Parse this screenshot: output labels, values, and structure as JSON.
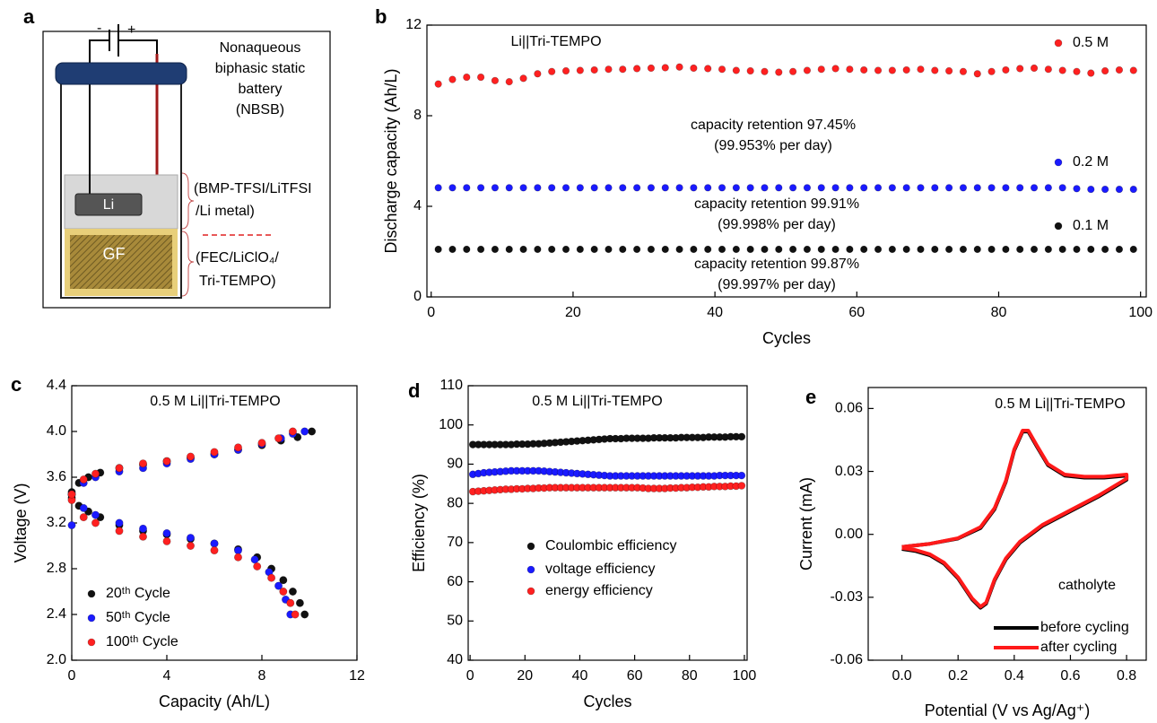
{
  "schematic": {
    "panel_label": "a",
    "minus": "-",
    "plus": "+",
    "battery_lines": [
      "Nonaqueous",
      "biphasic static",
      "battery",
      "(NBSB)"
    ],
    "top_phase": [
      "(BMP-TFSI/LiTFSI",
      "/Li metal)"
    ],
    "bottom_phase": [
      "(FEC/LiClO₄/",
      "Tri-TEMPO)"
    ],
    "anode": "Li",
    "felt": "GF"
  },
  "chart_data": [
    {
      "type": "scatter",
      "panel_label": "b",
      "xlabel": "Cycles",
      "ylabel": "Discharge capacity (Ah/L)",
      "xlim": [
        -0.6,
        100.8
      ],
      "ylim": [
        0,
        12
      ],
      "xticks": [
        0,
        20,
        40,
        60,
        80,
        100
      ],
      "yticks": [
        0,
        4,
        8,
        12
      ],
      "annotations": [
        "Li||Tri-TEMPO",
        "capacity retention 97.45%",
        "(99.953% per day)",
        "capacity retention 99.91%",
        "(99.998% per day)",
        "capacity retention 99.87%",
        "(99.997% per day)"
      ],
      "x": [
        1,
        3,
        5,
        7,
        9,
        11,
        13,
        15,
        17,
        19,
        21,
        23,
        25,
        27,
        29,
        31,
        33,
        35,
        37,
        39,
        41,
        43,
        45,
        47,
        49,
        51,
        53,
        55,
        57,
        59,
        61,
        63,
        65,
        67,
        69,
        71,
        73,
        75,
        77,
        79,
        81,
        83,
        85,
        87,
        89,
        91,
        93,
        95,
        97,
        99
      ],
      "series": [
        {
          "name": "0.5 M",
          "color": "#ff2020",
          "values": [
            9.4,
            9.6,
            9.7,
            9.7,
            9.55,
            9.5,
            9.65,
            9.85,
            9.95,
            9.98,
            10.0,
            10.02,
            10.05,
            10.05,
            10.08,
            10.1,
            10.12,
            10.15,
            10.1,
            10.08,
            10.05,
            10.0,
            9.98,
            9.95,
            9.92,
            9.95,
            10.0,
            10.05,
            10.08,
            10.05,
            10.02,
            10.0,
            10.0,
            10.02,
            10.05,
            10.0,
            9.98,
            9.95,
            9.85,
            9.95,
            10.02,
            10.08,
            10.1,
            10.05,
            10.0,
            9.95,
            9.88,
            9.98,
            10.02,
            10.0
          ]
        },
        {
          "name": "0.2 M",
          "color": "#1a1aff",
          "values": [
            4.82,
            4.82,
            4.82,
            4.82,
            4.82,
            4.82,
            4.82,
            4.82,
            4.82,
            4.82,
            4.82,
            4.82,
            4.82,
            4.82,
            4.82,
            4.82,
            4.82,
            4.82,
            4.82,
            4.82,
            4.82,
            4.82,
            4.82,
            4.82,
            4.82,
            4.82,
            4.82,
            4.82,
            4.82,
            4.82,
            4.82,
            4.82,
            4.82,
            4.82,
            4.82,
            4.82,
            4.82,
            4.82,
            4.82,
            4.82,
            4.82,
            4.82,
            4.82,
            4.82,
            4.82,
            4.78,
            4.75,
            4.75,
            4.75,
            4.75
          ]
        },
        {
          "name": "0.1 M",
          "color": "#111111",
          "values": [
            2.1,
            2.1,
            2.1,
            2.1,
            2.1,
            2.1,
            2.1,
            2.1,
            2.1,
            2.1,
            2.1,
            2.1,
            2.1,
            2.1,
            2.1,
            2.1,
            2.1,
            2.1,
            2.1,
            2.1,
            2.1,
            2.1,
            2.1,
            2.1,
            2.1,
            2.1,
            2.1,
            2.1,
            2.1,
            2.1,
            2.1,
            2.1,
            2.1,
            2.1,
            2.1,
            2.1,
            2.1,
            2.1,
            2.1,
            2.1,
            2.1,
            2.1,
            2.1,
            2.1,
            2.1,
            2.1,
            2.1,
            2.1,
            2.1,
            2.1
          ]
        }
      ]
    },
    {
      "type": "scatter",
      "panel_label": "c",
      "xlabel": "Capacity (Ah/L)",
      "ylabel": "Voltage (V)",
      "xlim": [
        0,
        12
      ],
      "ylim": [
        2.0,
        4.4
      ],
      "xticks": [
        0,
        4,
        8,
        12
      ],
      "yticks": [
        {
          "value": 2.0,
          "label": "2.0"
        },
        2.4,
        2.8,
        3.2,
        3.6,
        {
          "value": 4.0,
          "label": "4.0"
        },
        4.4
      ],
      "annotations": [
        "0.5 M Li||Tri-TEMPO"
      ],
      "series": [
        {
          "name": "20ᵗʰ Cycle",
          "color": "#111111",
          "x": [
            0,
            0.3,
            0.7,
            1.2,
            2,
            3,
            4,
            5,
            6,
            7,
            7.8,
            8.4,
            8.9,
            9.3,
            9.6,
            9.8,
            0,
            0.3,
            0.7,
            1.2,
            2,
            3,
            4,
            5,
            6,
            7,
            8,
            8.8,
            9.5,
            10.1
          ],
          "values": [
            3.42,
            3.35,
            3.3,
            3.25,
            3.18,
            3.13,
            3.1,
            3.06,
            3.02,
            2.97,
            2.9,
            2.8,
            2.7,
            2.6,
            2.5,
            2.4,
            3.47,
            3.55,
            3.6,
            3.64,
            3.68,
            3.71,
            3.74,
            3.77,
            3.8,
            3.84,
            3.88,
            3.92,
            3.95,
            4.0
          ]
        },
        {
          "name": "50ᵗʰ Cycle",
          "color": "#1a1aff",
          "x": [
            0,
            0.5,
            1,
            2,
            3,
            4,
            5,
            6,
            7,
            7.7,
            8.3,
            8.7,
            9.0,
            9.2,
            0,
            0.5,
            1,
            2,
            3,
            4,
            5,
            6,
            7,
            8,
            8.8,
            9.3,
            9.8,
            0
          ],
          "values": [
            3.45,
            3.33,
            3.27,
            3.2,
            3.15,
            3.11,
            3.07,
            3.02,
            2.96,
            2.88,
            2.77,
            2.65,
            2.53,
            2.4,
            3.45,
            3.55,
            3.6,
            3.65,
            3.68,
            3.72,
            3.76,
            3.8,
            3.84,
            3.89,
            3.94,
            3.98,
            4.0,
            3.18
          ]
        },
        {
          "name": "100ᵗʰ Cycle",
          "color": "#ff2020",
          "x": [
            0,
            0.5,
            1,
            2,
            3,
            4,
            5,
            6,
            7,
            7.8,
            8.4,
            8.9,
            9.2,
            9.4,
            0,
            0.5,
            1,
            2,
            3,
            4,
            5,
            6,
            7,
            8,
            8.7,
            9.3
          ],
          "values": [
            3.4,
            3.25,
            3.2,
            3.13,
            3.08,
            3.04,
            3.0,
            2.96,
            2.9,
            2.82,
            2.72,
            2.6,
            2.5,
            2.4,
            3.45,
            3.58,
            3.63,
            3.68,
            3.72,
            3.74,
            3.78,
            3.82,
            3.86,
            3.9,
            3.94,
            4.0
          ]
        }
      ]
    },
    {
      "type": "scatter",
      "panel_label": "d",
      "xlabel": "Cycles",
      "ylabel": "Efficiency (%)",
      "xlim": [
        -0.7,
        101
      ],
      "ylim": [
        40,
        110
      ],
      "xticks": [
        0,
        20,
        40,
        60,
        80,
        100
      ],
      "yticks": [
        40,
        50,
        60,
        70,
        80,
        90,
        100,
        110
      ],
      "annotations": [
        "0.5 M Li||Tri-TEMPO"
      ],
      "x": [
        1,
        3,
        5,
        7,
        9,
        11,
        13,
        15,
        17,
        19,
        21,
        23,
        25,
        27,
        29,
        31,
        33,
        35,
        37,
        39,
        41,
        43,
        45,
        47,
        49,
        51,
        53,
        55,
        57,
        59,
        61,
        63,
        65,
        67,
        69,
        71,
        73,
        75,
        77,
        79,
        81,
        83,
        85,
        87,
        89,
        91,
        93,
        95,
        97,
        99
      ],
      "series": [
        {
          "name": "Coulombic efficiency",
          "color": "#111111",
          "values": [
            95.0,
            95.0,
            95.0,
            95.0,
            95.0,
            95.0,
            95.0,
            95.0,
            95.1,
            95.1,
            95.1,
            95.2,
            95.2,
            95.3,
            95.4,
            95.5,
            95.6,
            95.7,
            95.8,
            95.9,
            96.0,
            96.1,
            96.2,
            96.3,
            96.4,
            96.5,
            96.5,
            96.5,
            96.6,
            96.6,
            96.6,
            96.6,
            96.6,
            96.7,
            96.7,
            96.7,
            96.7,
            96.7,
            96.8,
            96.8,
            96.8,
            96.8,
            96.8,
            96.9,
            96.9,
            96.9,
            96.9,
            97.0,
            97.0,
            97.0
          ]
        },
        {
          "name": "voltage efficiency",
          "color": "#1a1aff",
          "values": [
            87.4,
            87.6,
            87.8,
            87.9,
            88.0,
            88.1,
            88.2,
            88.3,
            88.3,
            88.3,
            88.3,
            88.3,
            88.3,
            88.2,
            88.1,
            88.0,
            87.9,
            87.8,
            87.7,
            87.6,
            87.5,
            87.4,
            87.3,
            87.2,
            87.1,
            87.0,
            87.0,
            87.0,
            87.0,
            87.0,
            87.0,
            87.0,
            87.0,
            87.0,
            87.0,
            87.0,
            87.0,
            87.0,
            87.0,
            87.0,
            87.0,
            87.0,
            87.0,
            87.0,
            87.0,
            87.1,
            87.1,
            87.1,
            87.1,
            87.1
          ]
        },
        {
          "name": "energy efficiency",
          "color": "#ff2020",
          "values": [
            83.0,
            83.1,
            83.2,
            83.3,
            83.4,
            83.5,
            83.6,
            83.6,
            83.7,
            83.7,
            83.8,
            83.8,
            83.9,
            83.9,
            84.0,
            84.0,
            84.0,
            84.0,
            84.0,
            84.0,
            84.0,
            84.0,
            84.0,
            84.0,
            84.0,
            84.0,
            84.0,
            84.0,
            84.0,
            84.0,
            84.0,
            83.9,
            83.8,
            83.8,
            83.8,
            83.8,
            83.9,
            83.9,
            84.0,
            84.0,
            84.1,
            84.1,
            84.2,
            84.2,
            84.3,
            84.3,
            84.3,
            84.4,
            84.4,
            84.5
          ]
        }
      ]
    },
    {
      "type": "line",
      "panel_label": "e",
      "xlabel": "Potential (V vs Ag/Ag⁺)",
      "ylabel": "Current (mA)",
      "xlim": [
        -0.12,
        0.87
      ],
      "ylim": [
        -0.06,
        0.07
      ],
      "xticks": [
        {
          "value": 0,
          "label": "0.0"
        },
        0.2,
        0.4,
        0.6,
        0.8
      ],
      "yticks": [
        -0.06,
        -0.03,
        {
          "value": 0,
          "label": "0.00"
        },
        0.03,
        0.06
      ],
      "annotations": [
        "0.5 M Li||Tri-TEMPO",
        "catholyte"
      ],
      "series": [
        {
          "name": "before cycling",
          "color": "#000000",
          "x": [
            0,
            0.1,
            0.2,
            0.28,
            0.33,
            0.37,
            0.4,
            0.43,
            0.45,
            0.48,
            0.52,
            0.58,
            0.65,
            0.72,
            0.8,
            0.8,
            0.7,
            0.6,
            0.5,
            0.42,
            0.37,
            0.33,
            0.3,
            0.28,
            0.25,
            0.2,
            0.15,
            0.1,
            0.05,
            0
          ],
          "values": [
            -0.006,
            -0.0045,
            -0.002,
            0.003,
            0.012,
            0.025,
            0.04,
            0.049,
            0.049,
            0.042,
            0.033,
            0.028,
            0.027,
            0.027,
            0.028,
            0.026,
            0.018,
            0.011,
            0.004,
            -0.004,
            -0.012,
            -0.022,
            -0.033,
            -0.035,
            -0.031,
            -0.021,
            -0.014,
            -0.01,
            -0.008,
            -0.007
          ]
        },
        {
          "name": "after cycling",
          "color": "#ff1a1a",
          "x": [
            0,
            0.1,
            0.2,
            0.28,
            0.33,
            0.37,
            0.4,
            0.43,
            0.45,
            0.48,
            0.52,
            0.58,
            0.65,
            0.72,
            0.8,
            0.8,
            0.7,
            0.6,
            0.5,
            0.42,
            0.37,
            0.33,
            0.3,
            0.28,
            0.25,
            0.2,
            0.15,
            0.1,
            0.05,
            0
          ],
          "values": [
            -0.006,
            -0.0045,
            -0.0018,
            0.0035,
            0.0125,
            0.0255,
            0.0405,
            0.0495,
            0.0495,
            0.0425,
            0.0335,
            0.0285,
            0.0275,
            0.0275,
            0.0285,
            0.0265,
            0.0185,
            0.0115,
            0.0045,
            -0.0035,
            -0.0115,
            -0.0215,
            -0.0325,
            -0.0345,
            -0.0305,
            -0.0205,
            -0.0135,
            -0.0095,
            -0.0075,
            -0.0065
          ]
        }
      ]
    }
  ]
}
